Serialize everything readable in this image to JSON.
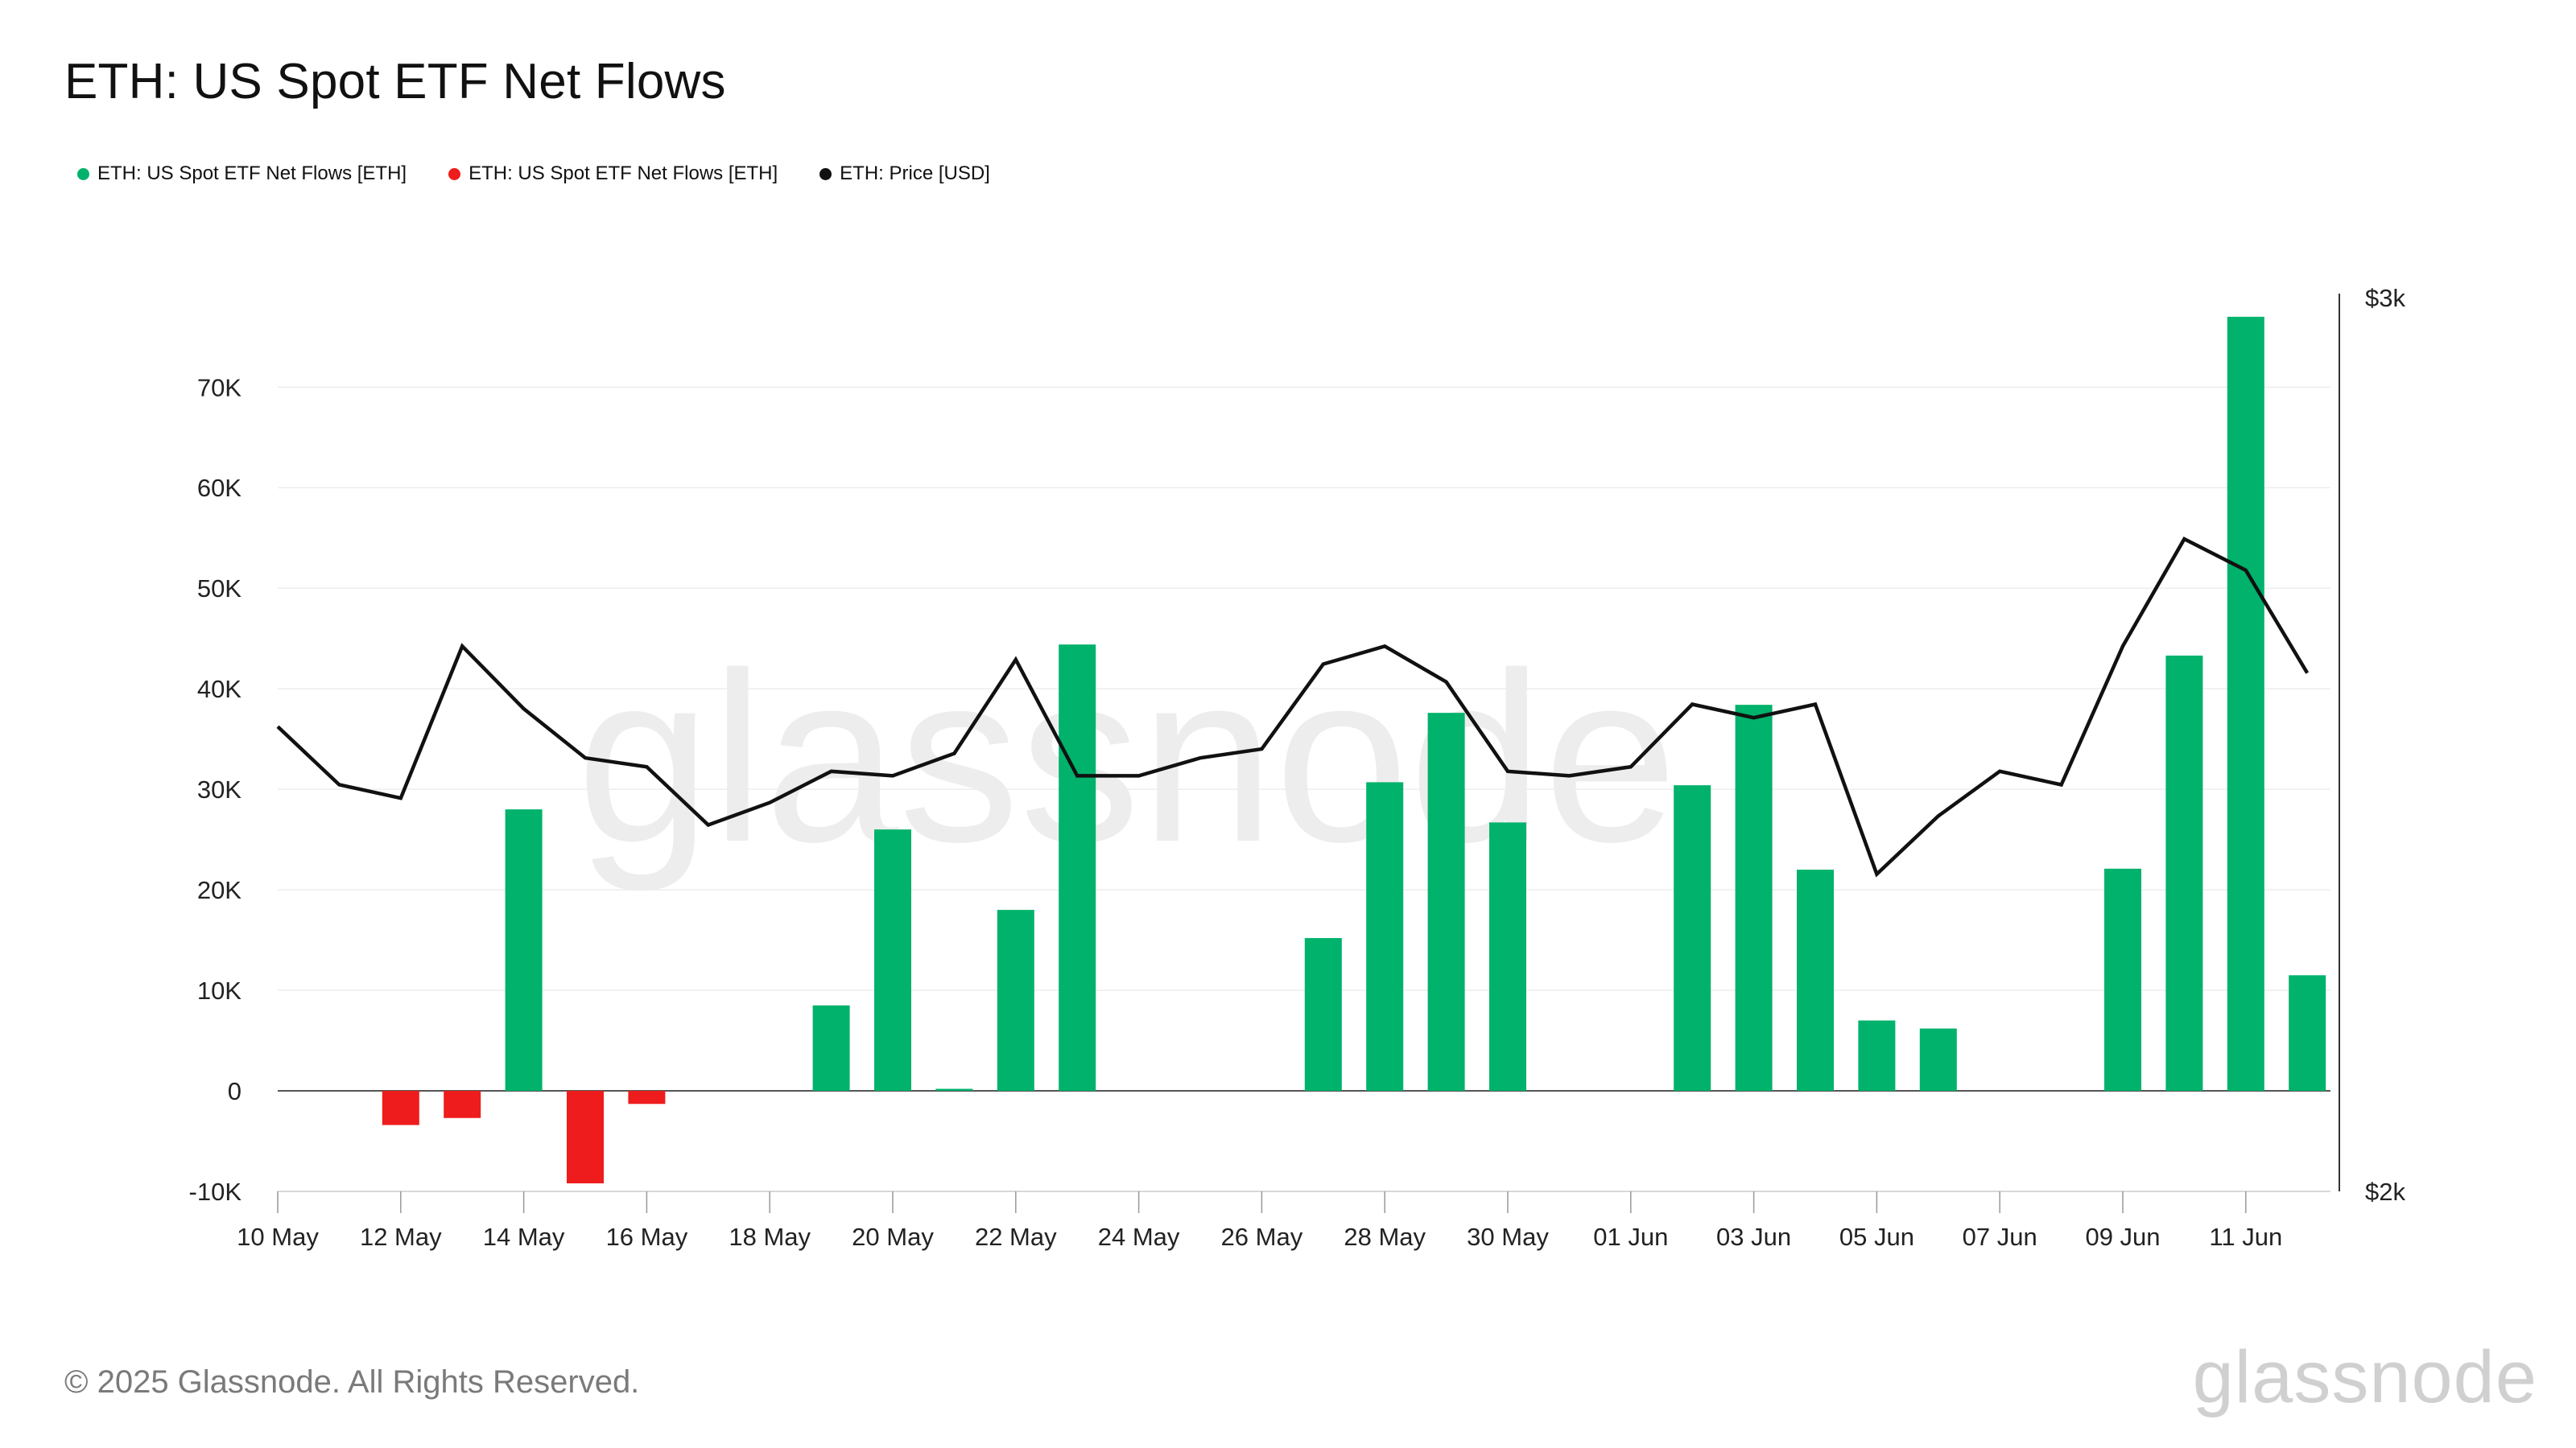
{
  "header": {
    "title": "ETH: US Spot ETF Net Flows"
  },
  "legend": [
    {
      "label": "ETH: US Spot ETF Net Flows [ETH]",
      "color": "#00b26b"
    },
    {
      "label": "ETH: US Spot ETF Net Flows [ETH]",
      "color": "#ee1c1c"
    },
    {
      "label": "ETH: Price [USD]",
      "color": "#111111"
    }
  ],
  "watermark": "glassnode",
  "footer": {
    "copyright": "© 2025 Glassnode. All Rights Reserved.",
    "logo": "glassnode"
  },
  "chart_data": {
    "type": "bar",
    "title": "ETH: US Spot ETF Net Flows",
    "x": [
      "10 May",
      "11 May",
      "12 May",
      "13 May",
      "14 May",
      "15 May",
      "16 May",
      "17 May",
      "18 May",
      "19 May",
      "20 May",
      "21 May",
      "22 May",
      "23 May",
      "24 May",
      "25 May",
      "26 May",
      "27 May",
      "28 May",
      "29 May",
      "30 May",
      "31 May",
      "01 Jun",
      "02 Jun",
      "03 Jun",
      "04 Jun",
      "05 Jun",
      "06 Jun",
      "07 Jun",
      "08 Jun",
      "09 Jun",
      "10 Jun",
      "11 Jun",
      "12 Jun"
    ],
    "x_tick_labels": [
      "10 May",
      "12 May",
      "14 May",
      "16 May",
      "18 May",
      "20 May",
      "22 May",
      "24 May",
      "26 May",
      "28 May",
      "30 May",
      "01 Jun",
      "03 Jun",
      "05 Jun",
      "07 Jun",
      "09 Jun",
      "11 Jun"
    ],
    "y_left": {
      "ylim": [
        -10000,
        78000
      ],
      "ticks": [
        -10000,
        0,
        10000,
        20000,
        30000,
        40000,
        50000,
        60000,
        70000
      ],
      "tick_labels": [
        "-10K",
        "0",
        "10K",
        "20K",
        "30K",
        "40K",
        "50K",
        "60K",
        "70K"
      ]
    },
    "y_right": {
      "ylim": [
        2000,
        3000
      ],
      "ticks": [
        2000,
        3000
      ],
      "tick_labels": [
        "$2k",
        "$3k"
      ]
    },
    "series": [
      {
        "name": "ETH: US Spot ETF Net Flows [ETH]",
        "kind": "bar",
        "axis": "left",
        "color_positive": "#00b26b",
        "color_negative": "#ee1c1c",
        "values": [
          0,
          0,
          -3400,
          -2700,
          28000,
          -9200,
          -1300,
          0,
          0,
          8500,
          26000,
          200,
          18000,
          44400,
          0,
          0,
          0,
          15200,
          30700,
          37600,
          26700,
          0,
          0,
          30400,
          38400,
          22000,
          7000,
          6200,
          0,
          0,
          22100,
          43300,
          77000,
          11500
        ]
      },
      {
        "name": "ETH: Price [USD]",
        "kind": "line",
        "axis": "right",
        "color": "#111111",
        "values": [
          2520,
          2455,
          2440,
          2610,
          2540,
          2485,
          2475,
          2410,
          2435,
          2470,
          2465,
          2490,
          2595,
          2465,
          2465,
          2485,
          2495,
          2590,
          2610,
          2570,
          2470,
          2465,
          2475,
          2545,
          2530,
          2545,
          2355,
          2420,
          2470,
          2455,
          2610,
          2730,
          2695,
          2580
        ]
      }
    ],
    "grid": true
  }
}
